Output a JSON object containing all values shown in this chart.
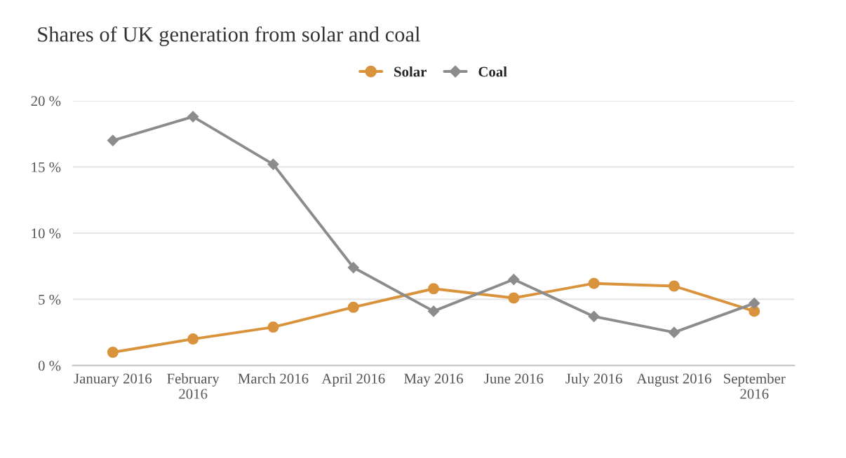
{
  "chart_data": {
    "type": "line",
    "title": "Shares of UK generation from solar and coal",
    "categories": [
      "January 2016",
      "February\n2016",
      "March 2016",
      "April 2016",
      "May 2016",
      "June 2016",
      "July 2016",
      "August 2016",
      "September\n2016"
    ],
    "series": [
      {
        "name": "Solar",
        "color": "#d9933d",
        "marker": "circle",
        "values": [
          1.0,
          2.0,
          2.9,
          4.4,
          5.8,
          5.1,
          6.2,
          6.0,
          4.1
        ]
      },
      {
        "name": "Coal",
        "color": "#8c8c8c",
        "marker": "diamond",
        "values": [
          17.0,
          18.8,
          15.2,
          7.4,
          4.1,
          6.5,
          3.7,
          2.5,
          4.7
        ]
      }
    ],
    "ylim": [
      0,
      20
    ],
    "yticks": [
      {
        "value": 0,
        "label": "0 %"
      },
      {
        "value": 5,
        "label": "5 %"
      },
      {
        "value": 10,
        "label": "10 %"
      },
      {
        "value": 15,
        "label": "15 %"
      },
      {
        "value": 20,
        "label": "20 %"
      }
    ],
    "grid": "y",
    "legend": "top",
    "line_style": "solid"
  }
}
